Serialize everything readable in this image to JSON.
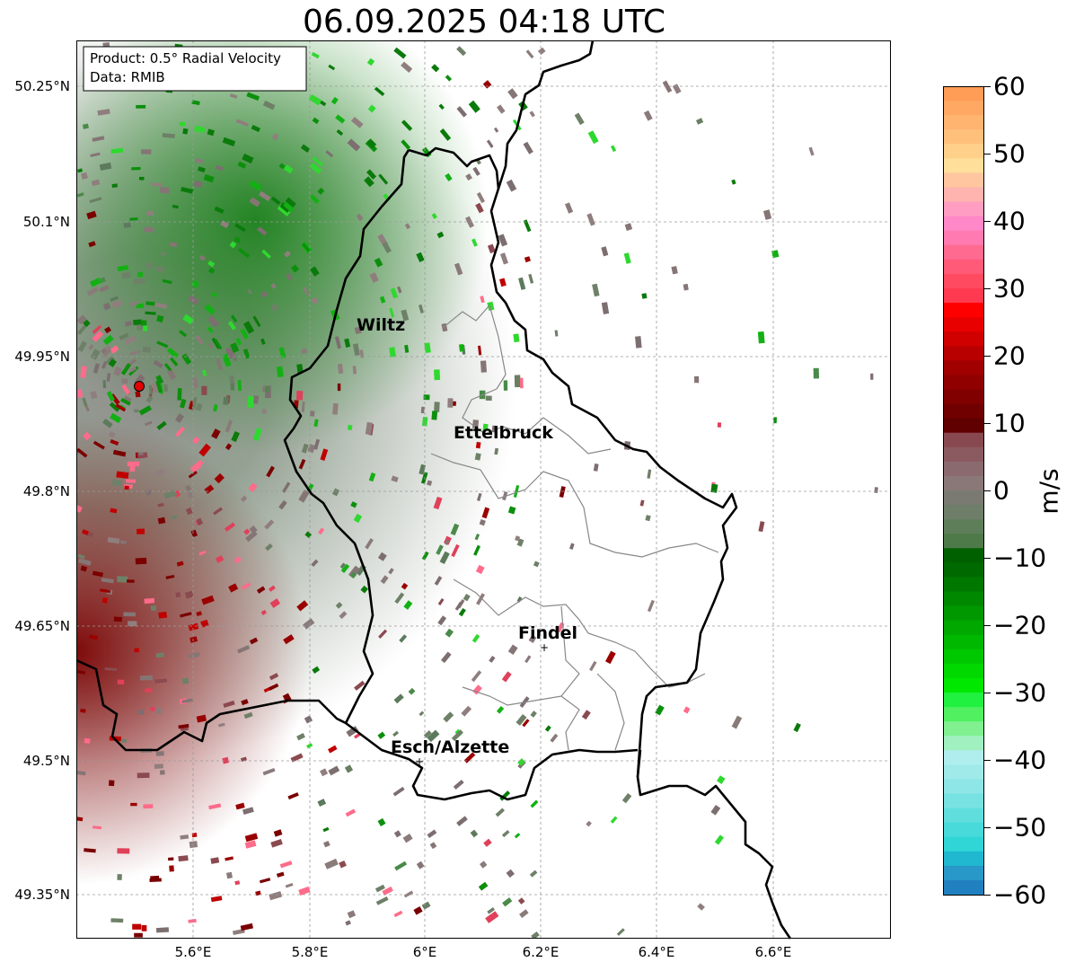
{
  "title": "06.09.2025 04:18 UTC",
  "info_box": {
    "product": "Product: 0.5° Radial Velocity",
    "data": "Data: RMIB"
  },
  "axes": {
    "lon_ticks": [
      "5.6°E",
      "5.8°E",
      "6°E",
      "6.2°E",
      "6.4°E",
      "6.6°E"
    ],
    "lat_ticks": [
      "50.25°N",
      "50.1°N",
      "49.95°N",
      "49.8°N",
      "49.65°N",
      "49.5°N",
      "49.35°N"
    ]
  },
  "places": [
    {
      "name": "Wiltz",
      "marker": false
    },
    {
      "name": "Ettelbruck",
      "marker": false
    },
    {
      "name": "Findel",
      "marker": true
    },
    {
      "name": "Esch/Alzette",
      "marker": true
    }
  ],
  "colorbar": {
    "label": "m/s",
    "ticks": [
      "60",
      "50",
      "40",
      "30",
      "20",
      "10",
      "0",
      "−10",
      "−20",
      "−30",
      "−40",
      "−50",
      "−60"
    ],
    "min": -60,
    "max": 60
  },
  "colors": {
    "approach_green": "#0a8a0a",
    "recede_red": "#8b0000",
    "near_zero": "#8a7a7a",
    "border": "#000000",
    "district": "#888888",
    "radar_site": "#e00000"
  }
}
